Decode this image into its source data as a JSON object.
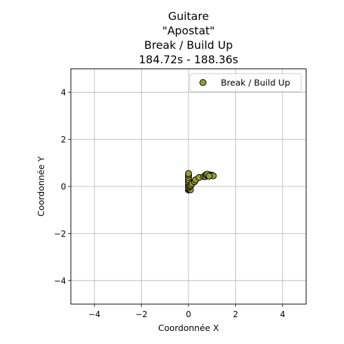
{
  "chart_data": {
    "type": "scatter",
    "title_lines": [
      "Guitare",
      "\"Apostat\"",
      "Break / Build Up",
      "184.72s - 188.36s"
    ],
    "xlabel": "Coordonnée X",
    "ylabel": "Coordonnée Y",
    "xlim": [
      -5,
      5
    ],
    "ylim": [
      -5,
      5
    ],
    "xticks": [
      -4,
      -2,
      0,
      2,
      4
    ],
    "yticks": [
      -4,
      -2,
      0,
      2,
      4
    ],
    "xtick_labels": [
      "−4",
      "−2",
      "0",
      "2",
      "4"
    ],
    "ytick_labels": [
      "−4",
      "−2",
      "0",
      "2",
      "4"
    ],
    "grid": true,
    "legend_position": "upper right",
    "colors": {
      "marker_fill": "#9a9a3a",
      "marker_edge": "#000000",
      "grid": "#b0b0b0"
    },
    "series": [
      {
        "name": "Break / Build Up",
        "points": [
          [
            0.0,
            -0.15
          ],
          [
            0.02,
            -0.12
          ],
          [
            0.05,
            -0.1
          ],
          [
            0.08,
            -0.14
          ],
          [
            0.0,
            -0.05
          ],
          [
            0.03,
            0.0
          ],
          [
            0.0,
            0.05
          ],
          [
            0.02,
            0.1
          ],
          [
            0.0,
            0.2
          ],
          [
            0.0,
            0.28
          ],
          [
            0.0,
            0.38
          ],
          [
            0.0,
            0.48
          ],
          [
            0.0,
            0.55
          ],
          [
            0.1,
            0.05
          ],
          [
            0.15,
            0.12
          ],
          [
            0.25,
            0.2
          ],
          [
            0.3,
            0.28
          ],
          [
            0.45,
            0.38
          ],
          [
            0.65,
            0.42
          ],
          [
            0.72,
            0.42
          ],
          [
            0.78,
            0.48
          ],
          [
            0.82,
            0.45
          ],
          [
            0.85,
            0.5
          ],
          [
            0.9,
            0.47
          ],
          [
            0.95,
            0.48
          ],
          [
            1.0,
            0.47
          ],
          [
            1.05,
            0.45
          ],
          [
            0.75,
            0.5
          ],
          [
            0.8,
            0.52
          ],
          [
            0.88,
            0.44
          ]
        ]
      }
    ]
  }
}
